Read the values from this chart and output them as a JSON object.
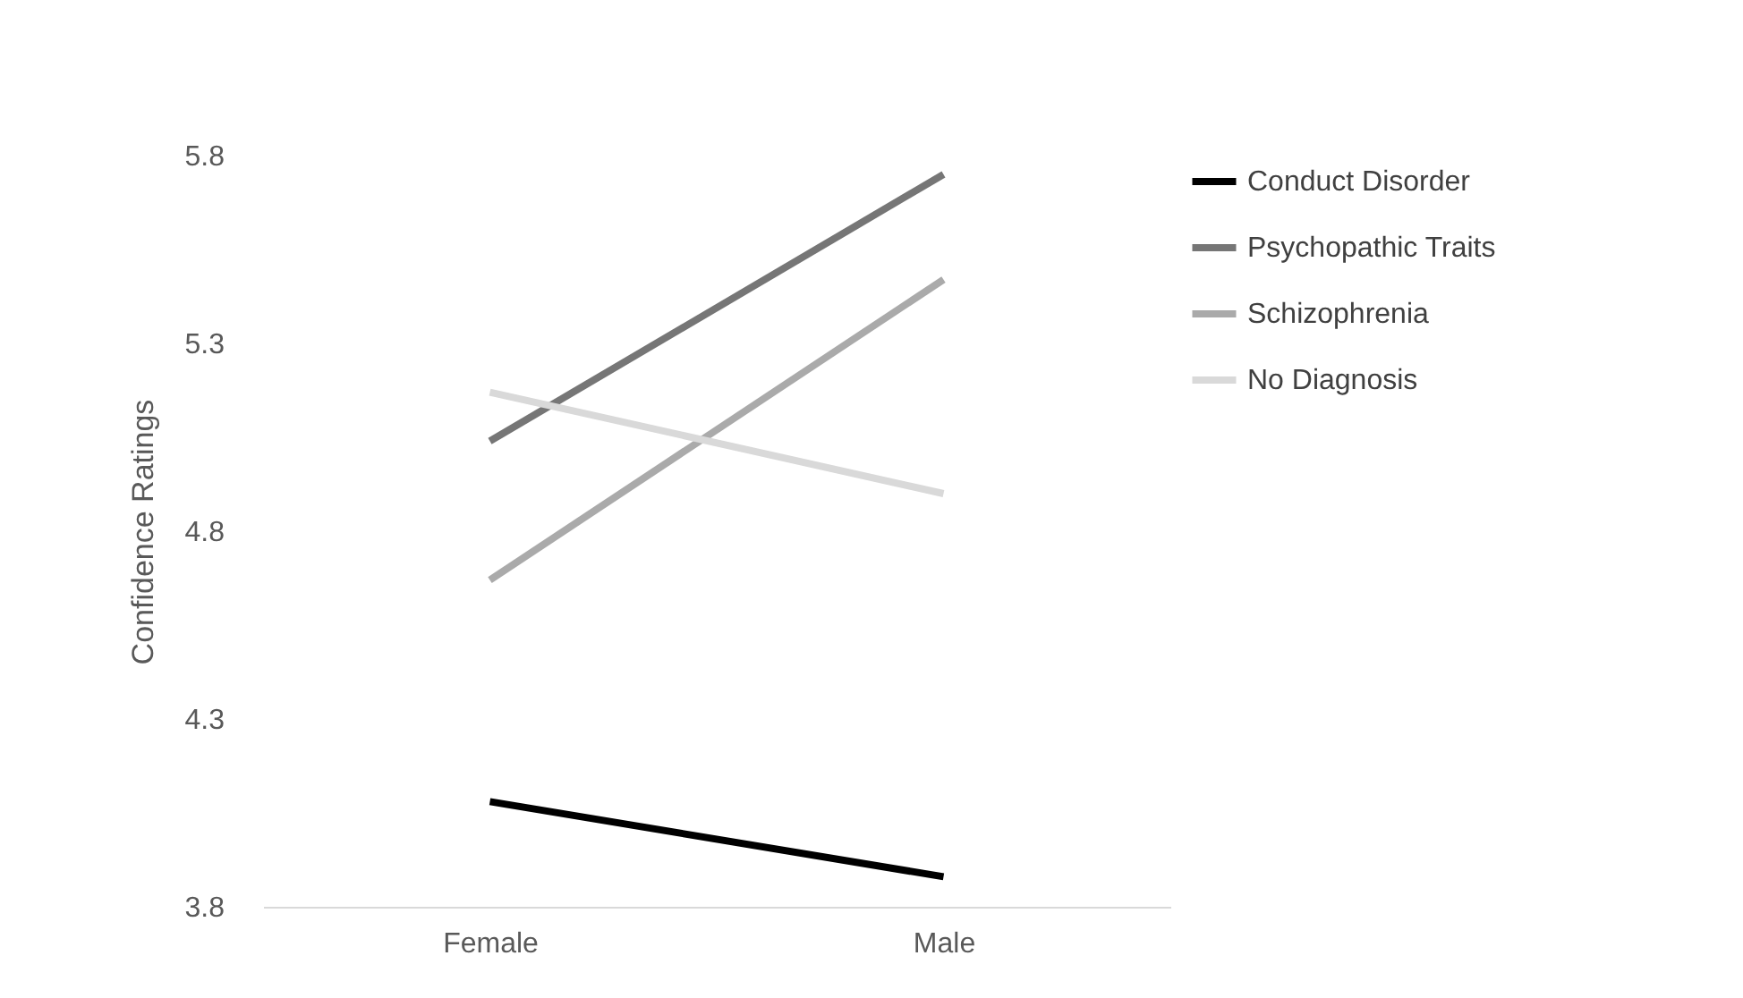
{
  "chart_data": {
    "type": "line",
    "ylabel": "Confidence Ratings",
    "categories": [
      "Female",
      "Male"
    ],
    "series": [
      {
        "name": "Conduct Disorder",
        "color": "#000000",
        "values": [
          4.08,
          3.88
        ]
      },
      {
        "name": "Psychopathic Traits",
        "color": "#767676",
        "values": [
          5.04,
          5.75
        ]
      },
      {
        "name": "Schizophrenia",
        "color": "#aaaaaa",
        "values": [
          4.67,
          5.47
        ]
      },
      {
        "name": "No Diagnosis",
        "color": "#d9d9d9",
        "values": [
          5.17,
          4.9
        ]
      }
    ],
    "ylim": [
      3.8,
      5.8
    ],
    "yticks": [
      3.8,
      4.3,
      4.8,
      5.3,
      5.8
    ],
    "grid": false,
    "legend": "right",
    "marker": "none",
    "line_style": "solid"
  }
}
